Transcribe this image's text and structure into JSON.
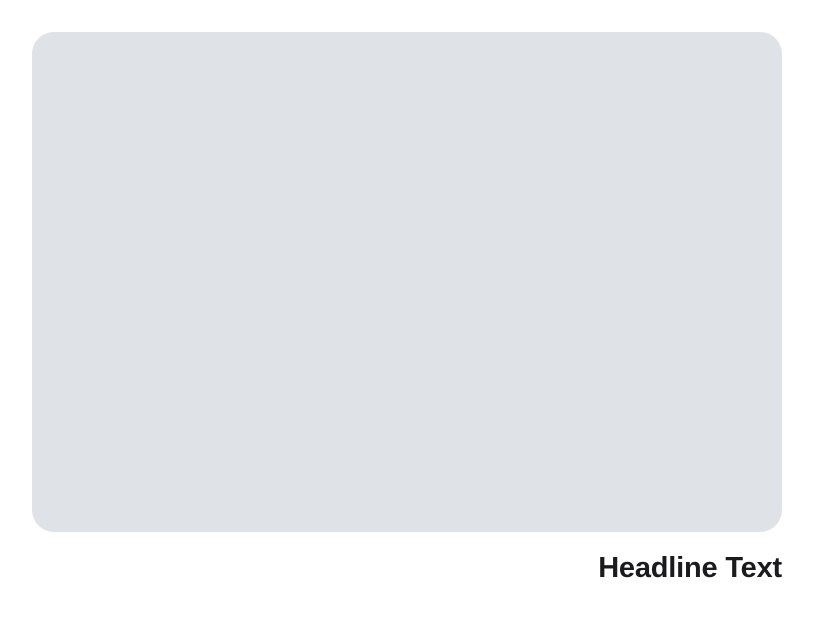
{
  "card": {
    "headline": "Headline Text"
  },
  "colors": {
    "placeholder_bg": "#dfe2e7",
    "headline_text": "#1b1b1d",
    "page_bg": "#ffffff"
  }
}
